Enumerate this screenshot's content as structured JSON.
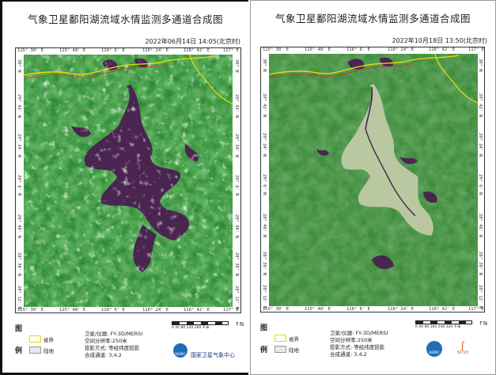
{
  "left": {
    "title": "气象卫星鄱阳湖流域水情监测多通道合成图",
    "time": "2022年06月14日 14:05(北京时)",
    "lon_top": [
      "115° 30' E",
      "115° 48' E",
      "116° 6' E",
      "116° 24' E",
      "116° 42' E",
      "117° E"
    ],
    "lon_bottom": [
      "115° 30' E",
      "115° 48' E",
      "116° 6' E",
      "116° 24' E",
      "116° 42' E",
      "117° E"
    ],
    "lat_labels": [
      "30° N",
      "29° 42' N",
      "29° 24' N",
      "29° 6' N",
      "28° 48' N",
      "28° 30' N",
      "28° 12' N"
    ],
    "legend_title_1": "图",
    "legend_title_2": "例",
    "legend_item_1": "省界",
    "legend_item_2": "陆地",
    "satellite": "卫星/仪器: FY-3D/MERSI",
    "resolution": "空间分辨率:250米",
    "projection": "投影方式: 等经纬度投影",
    "channels": "合成通道: 3,4,2",
    "scale_text": "0  40 80  120 160 千米",
    "org": "国家卫星气象中心",
    "logo_text": "NSMC"
  },
  "right": {
    "title": "气象卫星鄱阳湖流域水情监测多通道合成图",
    "time": "2022年10月18日 13:50(北京时)",
    "lon_top": [
      "115° 30' E",
      "115° 48' E",
      "116° 6' E",
      "116° 24' E",
      "116° 42' E",
      "117° E"
    ],
    "lon_bottom": [
      "115° 30' E",
      "115° 48' E",
      "116° 6' E",
      "116° 24' E",
      "116° 42' E",
      "117° E"
    ],
    "lat_labels": [
      "30° N",
      "29° 42' N",
      "29° 24' N",
      "29° 6' N",
      "28° 48' N",
      "28° 30' N",
      "28° 12' N"
    ],
    "legend_title_1": "图",
    "legend_title_2": "例",
    "legend_item_1": "省界",
    "legend_item_2": "陆地",
    "satellite": "卫星/仪器: FY-3D/MERSI",
    "resolution": "空间分辨率:250米",
    "projection": "投影方式: 等经纬度投影",
    "channels": "合成通道: 3,4,2",
    "scale_text": "0  40 80  160 240 320 千米",
    "logo_text": "NSMC",
    "logo2_text": "NCSH"
  },
  "colors": {
    "vegetation": "#3f9a3a",
    "water": "#4a2550",
    "boundary": "#f0e000",
    "dry_lakebed": "#b9c8a0"
  }
}
